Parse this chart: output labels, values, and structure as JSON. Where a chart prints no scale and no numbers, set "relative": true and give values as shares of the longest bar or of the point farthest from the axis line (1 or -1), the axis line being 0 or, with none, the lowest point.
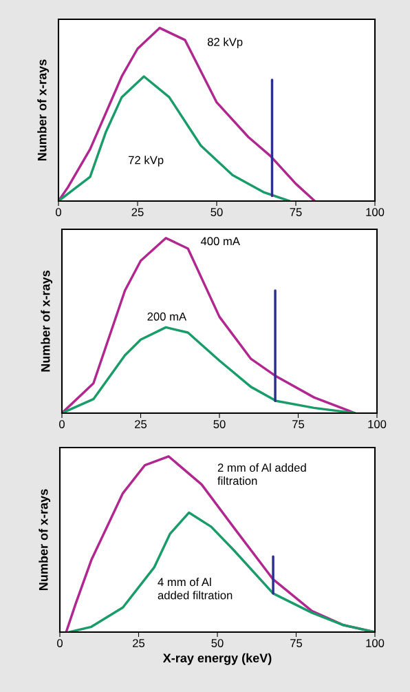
{
  "chart_data": [
    {
      "type": "line",
      "relative": true,
      "ylabel": "Number of x-rays",
      "xlim": [
        0,
        100
      ],
      "xticks": [
        0,
        25,
        50,
        75,
        100
      ],
      "grid": false,
      "legend": false,
      "series": [
        {
          "name": "82 kVp",
          "color": "#b0278f",
          "x": [
            0,
            3,
            10,
            20,
            25,
            32,
            40,
            50,
            60,
            67,
            75,
            81
          ],
          "values": [
            0,
            0.08,
            0.3,
            0.72,
            0.88,
            1.0,
            0.93,
            0.57,
            0.37,
            0.26,
            0.1,
            0
          ]
        },
        {
          "name": "72 kVp",
          "color": "#1a9b6a",
          "x": [
            0,
            5,
            10,
            15,
            20,
            27,
            35,
            45,
            55,
            65,
            73
          ],
          "values": [
            0,
            0.07,
            0.14,
            0.4,
            0.6,
            0.72,
            0.6,
            0.32,
            0.15,
            0.05,
            0
          ]
        },
        {
          "color": "#2b2f8f",
          "x": [
            67.5,
            67.5
          ],
          "values": [
            0.03,
            0.7
          ]
        }
      ]
    },
    {
      "type": "line",
      "relative": true,
      "ylabel": "Number of x-rays",
      "xlim": [
        0,
        100
      ],
      "xticks": [
        0,
        25,
        50,
        75,
        100
      ],
      "grid": false,
      "legend": false,
      "series": [
        {
          "name": "400 mA",
          "color": "#b0278f",
          "x": [
            0,
            10,
            20,
            25,
            33,
            40,
            50,
            60,
            68,
            80,
            93
          ],
          "values": [
            0,
            0.17,
            0.7,
            0.87,
            1.0,
            0.94,
            0.55,
            0.31,
            0.21,
            0.09,
            0
          ]
        },
        {
          "name": "200 mA",
          "color": "#1a9b6a",
          "x": [
            0,
            10,
            20,
            25,
            33,
            40,
            50,
            60,
            68,
            80,
            93
          ],
          "values": [
            0,
            0.08,
            0.33,
            0.42,
            0.49,
            0.46,
            0.3,
            0.15,
            0.07,
            0.03,
            0
          ]
        },
        {
          "color": "#2b2f8f",
          "x": [
            67.7,
            67.7
          ],
          "values": [
            0.07,
            0.7
          ]
        }
      ]
    },
    {
      "type": "line",
      "relative": true,
      "ylabel": "Number of x-rays",
      "xlabel": "X-ray energy (keV)",
      "xlim": [
        0,
        100
      ],
      "xticks": [
        0,
        25,
        50,
        75,
        100
      ],
      "grid": false,
      "legend": false,
      "series": [
        {
          "name": "2 mm of Al added\nfiltration",
          "color": "#b0278f",
          "x": [
            2,
            5,
            10,
            20,
            27,
            34.5,
            45,
            55,
            67.7,
            80,
            90,
            100
          ],
          "values": [
            0,
            0.16,
            0.41,
            0.79,
            0.95,
            1.0,
            0.84,
            0.6,
            0.3,
            0.12,
            0.04,
            0
          ]
        },
        {
          "name": "4 mm of Al\nadded filtration",
          "color": "#1a9b6a",
          "x": [
            3,
            10,
            20,
            30,
            35,
            41,
            48,
            55,
            67.7,
            80,
            90,
            100
          ],
          "values": [
            0,
            0.03,
            0.14,
            0.37,
            0.56,
            0.68,
            0.6,
            0.47,
            0.22,
            0.11,
            0.04,
            0
          ]
        },
        {
          "color": "#2b2f8f",
          "x": [
            67.7,
            67.7
          ],
          "values": [
            0.22,
            0.43
          ]
        }
      ]
    }
  ]
}
